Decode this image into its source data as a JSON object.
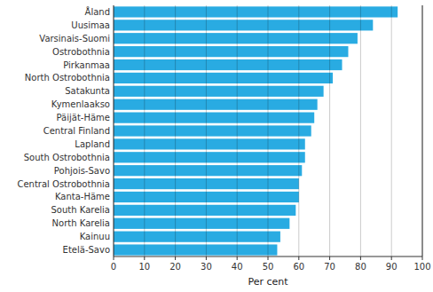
{
  "chart_data": {
    "type": "bar",
    "orientation": "horizontal",
    "categories": [
      "Etelä-Savo",
      "Kainuu",
      "North Karelia",
      "South Karelia",
      "Kanta-Häme",
      "Central Ostrobothnia",
      "Pohjois-Savo",
      "South Ostrobothnia",
      "Lapland",
      "Central Finland",
      "Päijät-Häme",
      "Kymenlaakso",
      "Satakunta",
      "North Ostrobothnia",
      "Pirkanmaa",
      "Ostrobothnia",
      "Varsinais-Suomi",
      "Uusimaa",
      "Åland"
    ],
    "values": [
      53,
      54,
      57,
      59,
      60,
      60,
      61,
      62,
      62,
      64,
      65,
      66,
      68,
      71,
      74,
      76,
      79,
      84,
      92
    ],
    "color": "#29ABE2",
    "xlabel": "Per cent",
    "xlim": [
      0,
      100
    ],
    "xticks": [
      0,
      10,
      20,
      30,
      40,
      50,
      60,
      70,
      80,
      90,
      100
    ],
    "grid": true
  }
}
